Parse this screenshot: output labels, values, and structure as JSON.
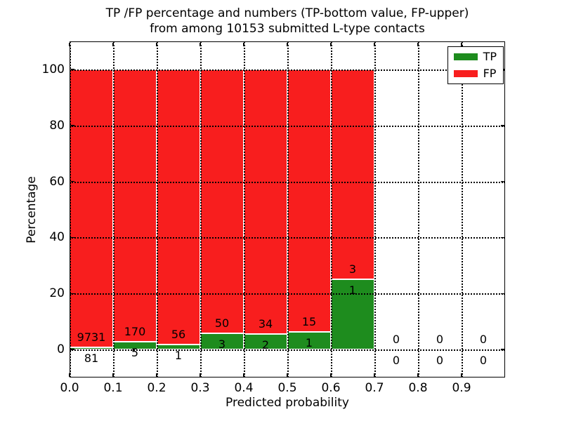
{
  "figure": {
    "title_line1": "TP /FP percentage and numbers (TP-bottom value, FP-upper)",
    "title_line2": "from among 10153 submitted L-type contacts"
  },
  "chart_data": {
    "type": "bar",
    "stacked": true,
    "normalized_to_percent": true,
    "title": "TP /FP percentage and numbers (TP-bottom value, FP-upper)\nfrom among 10153 submitted L-type contacts",
    "total_submitted": 10153,
    "xlabel": "Predicted probability",
    "ylabel": "Percentage",
    "xlim": [
      0.0,
      1.0
    ],
    "ylim": [
      -10,
      110
    ],
    "xticks": [
      0.0,
      0.1,
      0.2,
      0.3,
      0.4,
      0.5,
      0.6,
      0.7,
      0.8,
      0.9
    ],
    "xtick_labels": [
      "0.0",
      "0.1",
      "0.2",
      "0.3",
      "0.4",
      "0.5",
      "0.6",
      "0.7",
      "0.8",
      "0.9"
    ],
    "yticks": [
      0,
      20,
      40,
      60,
      80,
      100
    ],
    "ytick_labels": [
      "0",
      "20",
      "40",
      "60",
      "80",
      "100"
    ],
    "grid": "dotted black, drawn above bars",
    "bin_edges": [
      0.0,
      0.1,
      0.2,
      0.3,
      0.4,
      0.5,
      0.6,
      0.7,
      0.8,
      0.9,
      1.0
    ],
    "series": [
      {
        "name": "TP",
        "color": "#1e8c1e",
        "values": [
          81,
          5,
          1,
          3,
          2,
          1,
          1,
          0,
          0,
          0
        ]
      },
      {
        "name": "FP",
        "color": "#f81e1e",
        "values": [
          9731,
          170,
          56,
          50,
          34,
          15,
          3,
          0,
          0,
          0
        ]
      }
    ],
    "bar_edge_color": "#ffffff",
    "legend": {
      "position": "upper right",
      "entries": [
        {
          "label": "TP",
          "color": "#1e8c1e"
        },
        {
          "label": "FP",
          "color": "#f81e1e"
        }
      ]
    }
  }
}
